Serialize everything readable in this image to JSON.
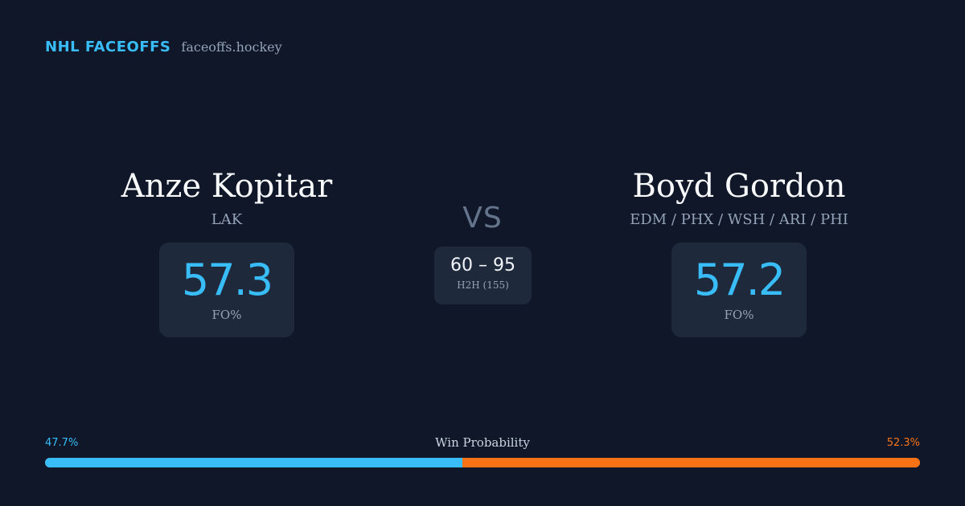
{
  "brand": {
    "name": "NHL FACEOFFS",
    "site": "faceoffs.hockey"
  },
  "player_left": {
    "name": "Anze Kopitar",
    "team": "LAK",
    "stat_value": "57.3",
    "stat_label": "FO%"
  },
  "player_right": {
    "name": "Boyd Gordon",
    "team": "EDM / PHX / WSH / ARI / PHI",
    "stat_value": "57.2",
    "stat_label": "FO%"
  },
  "versus": "VS",
  "h2h": {
    "score": "60 – 95",
    "label": "H2H (155)"
  },
  "win_probability": {
    "title": "Win Probability",
    "left_label": "47.7%",
    "right_label": "52.3%",
    "left_fraction": 0.477,
    "right_fraction": 0.523,
    "left_color": "#38bdf8",
    "right_color": "#f97316"
  },
  "colors": {
    "background": "#0f1729",
    "card": "#1e293b",
    "accent": "#38bdf8",
    "secondary": "#f97316"
  }
}
